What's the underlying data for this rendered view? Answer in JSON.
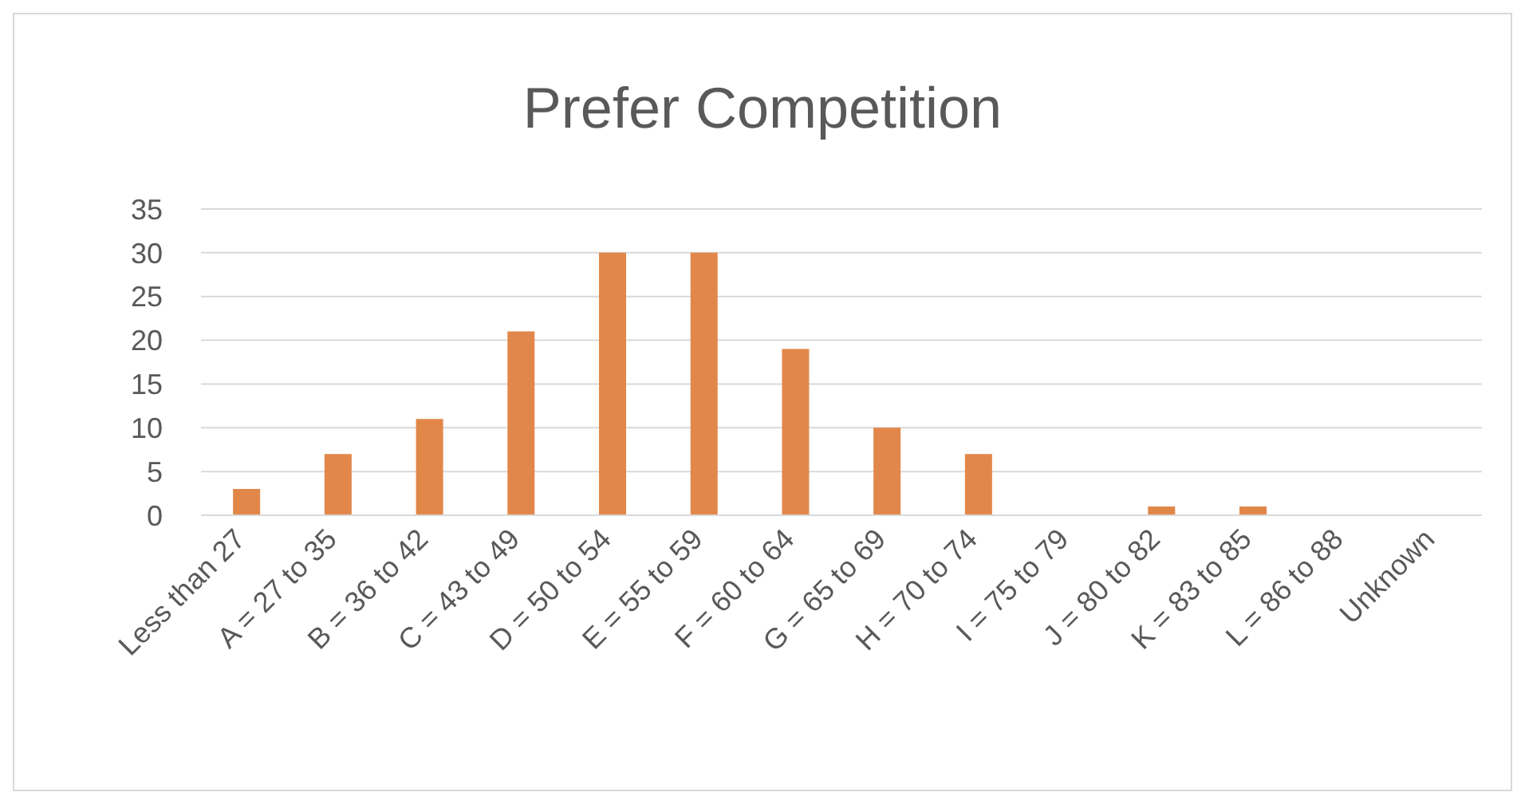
{
  "chart_data": {
    "type": "bar",
    "title": "Prefer Competition",
    "categories": [
      "Less than 27",
      "A = 27 to 35",
      "B = 36 to 42",
      "C = 43 to 49",
      "D = 50 to 54",
      "E = 55 to 59",
      "F = 60 to 64",
      "G = 65 to 69",
      "H = 70 to 74",
      "I = 75 to 79",
      "J = 80 to 82",
      "K = 83 to 85",
      "L = 86 to 88",
      "Unknown"
    ],
    "values": [
      3,
      7,
      11,
      21,
      30,
      30,
      19,
      10,
      7,
      0,
      1,
      1,
      0,
      0
    ],
    "color": "#e2874a",
    "ylim": [
      0,
      35
    ],
    "yticks": [
      0,
      5,
      10,
      15,
      20,
      25,
      30,
      35
    ],
    "grid": "y",
    "legend": false
  }
}
